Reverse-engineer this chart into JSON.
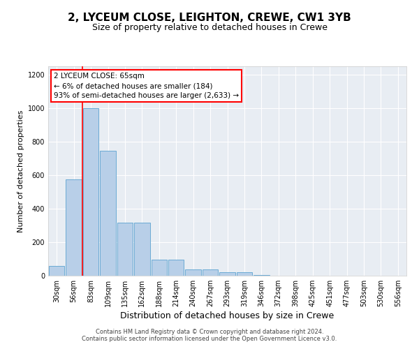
{
  "title_line1": "2, LYCEUM CLOSE, LEIGHTON, CREWE, CW1 3YB",
  "title_line2": "Size of property relative to detached houses in Crewe",
  "xlabel": "Distribution of detached houses by size in Crewe",
  "ylabel": "Number of detached properties",
  "footer_line1": "Contains HM Land Registry data © Crown copyright and database right 2024.",
  "footer_line2": "Contains public sector information licensed under the Open Government Licence v3.0.",
  "categories": [
    "30sqm",
    "56sqm",
    "83sqm",
    "109sqm",
    "135sqm",
    "162sqm",
    "188sqm",
    "214sqm",
    "240sqm",
    "267sqm",
    "293sqm",
    "319sqm",
    "346sqm",
    "372sqm",
    "398sqm",
    "425sqm",
    "451sqm",
    "477sqm",
    "503sqm",
    "530sqm",
    "556sqm"
  ],
  "values": [
    60,
    575,
    1000,
    745,
    315,
    315,
    95,
    95,
    38,
    38,
    20,
    20,
    5,
    2,
    0,
    0,
    0,
    0,
    0,
    0,
    0
  ],
  "bar_color": "#b8cfe8",
  "bar_edgecolor": "#6aaad4",
  "red_line_x": 1.5,
  "annotation_text": "2 LYCEUM CLOSE: 65sqm\n← 6% of detached houses are smaller (184)\n93% of semi-detached houses are larger (2,633) →",
  "annotation_box_color": "white",
  "annotation_box_edgecolor": "red",
  "ylim": [
    0,
    1250
  ],
  "yticks": [
    0,
    200,
    400,
    600,
    800,
    1000,
    1200
  ],
  "plot_background": "#e8edf3",
  "grid_color": "white",
  "red_line_color": "red",
  "title1_fontsize": 11,
  "title2_fontsize": 9,
  "xlabel_fontsize": 9,
  "ylabel_fontsize": 8,
  "annot_fontsize": 7.5,
  "tick_fontsize": 7,
  "footer_fontsize": 6
}
